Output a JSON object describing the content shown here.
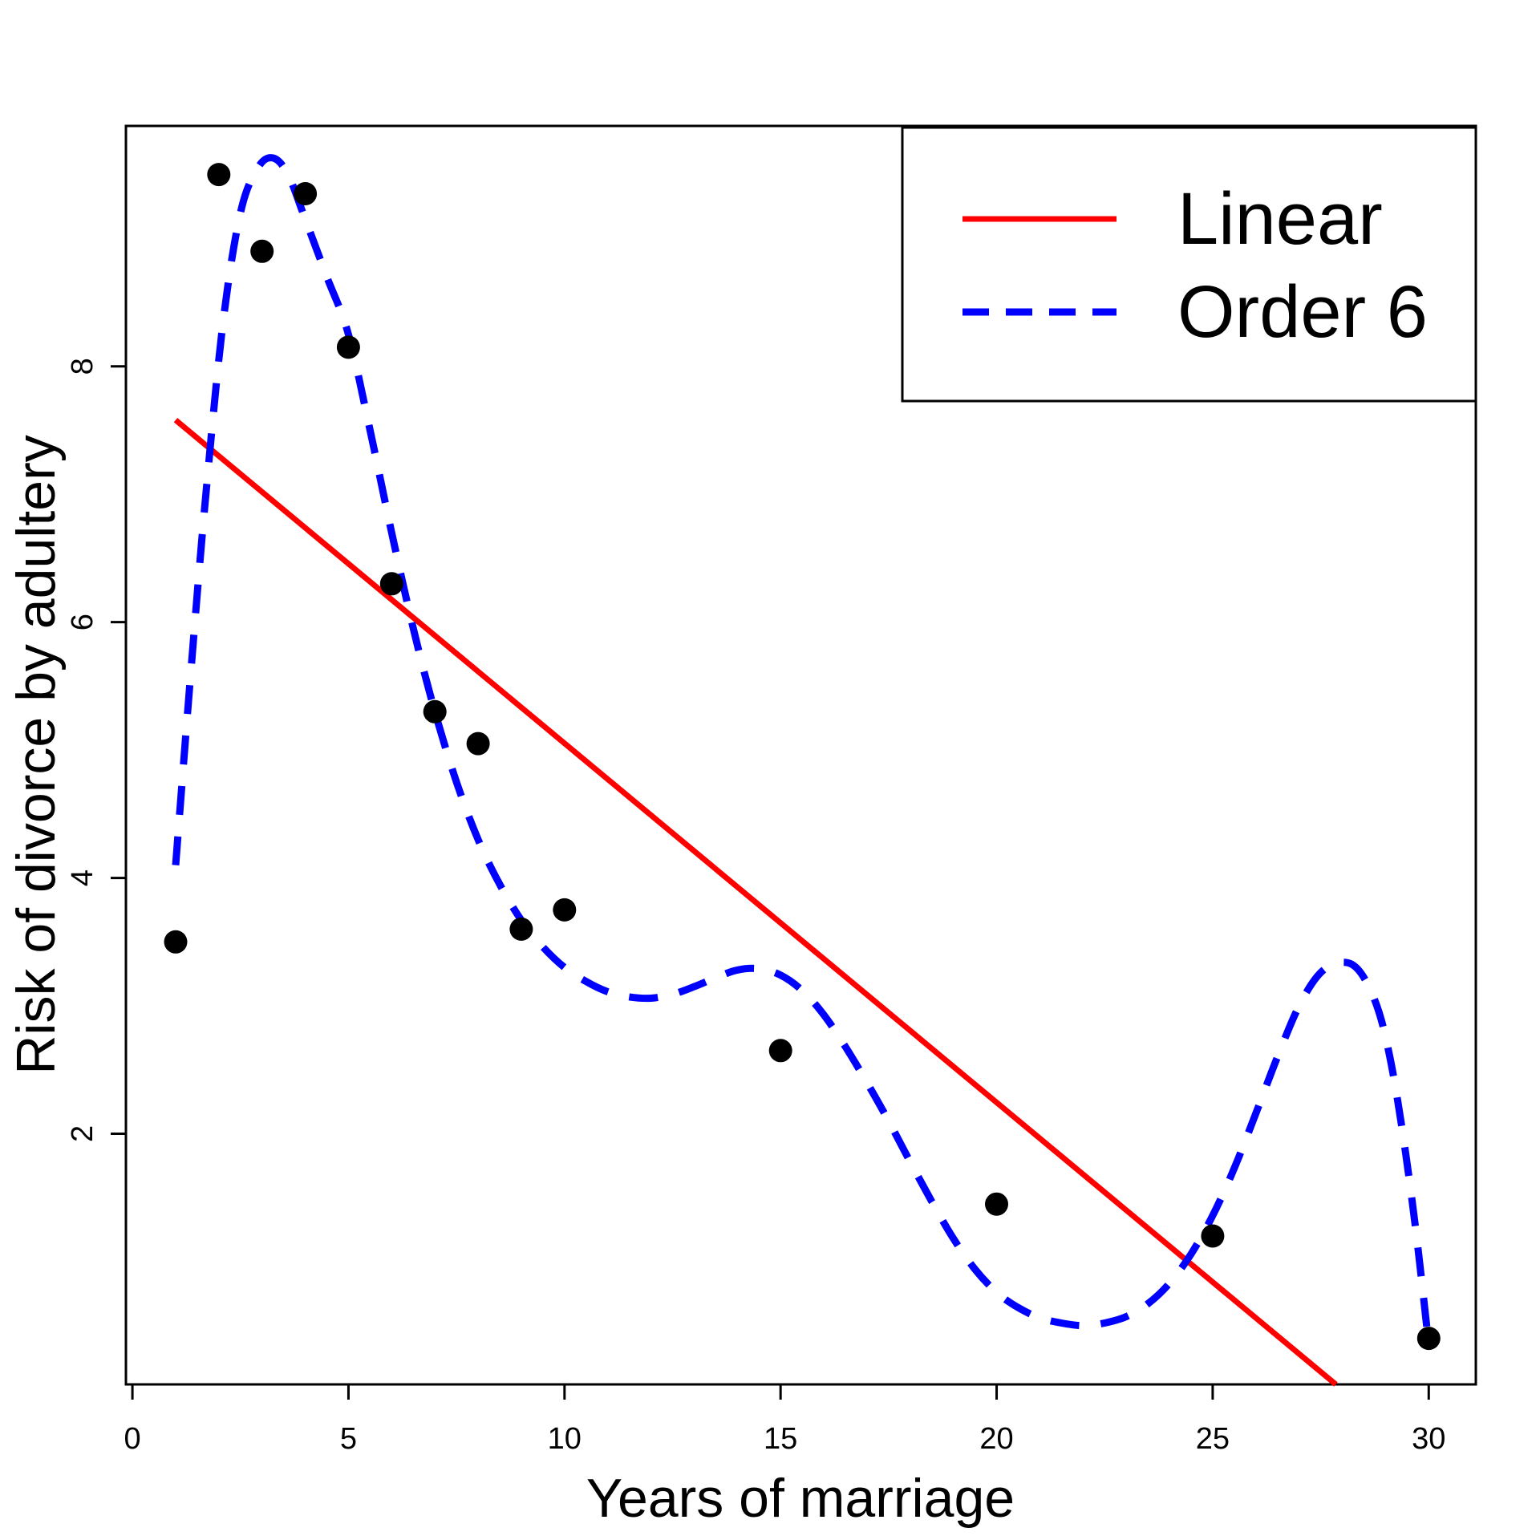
{
  "chart_data": {
    "type": "scatter",
    "title": "",
    "xlabel": "Years of marriage",
    "ylabel": "Risk of divorce by adultery",
    "xlim": [
      -0.15,
      31.09
    ],
    "ylim": [
      0.04,
      9.88
    ],
    "x_ticks": [
      0,
      5,
      10,
      15,
      20,
      25,
      30
    ],
    "y_ticks": [
      2,
      4,
      6,
      8
    ],
    "grid": false,
    "point_color": "#000000",
    "background": "#ffffff",
    "points": [
      [
        1,
        3.5
      ],
      [
        2,
        9.5
      ],
      [
        3,
        8.9
      ],
      [
        4,
        9.35
      ],
      [
        5,
        8.15
      ],
      [
        6,
        6.3
      ],
      [
        7,
        5.3
      ],
      [
        8,
        5.05
      ],
      [
        9,
        3.6
      ],
      [
        10,
        3.75
      ],
      [
        15,
        2.65
      ],
      [
        20,
        1.45
      ],
      [
        25,
        1.2
      ],
      [
        30,
        0.4
      ]
    ],
    "series": [
      {
        "name": "Linear",
        "type": "line",
        "color": "#FF0000",
        "style": "solid",
        "points": [
          [
            1,
            7.58
          ],
          [
            27.85,
            0.04
          ]
        ]
      },
      {
        "name": "Order 6",
        "type": "curve",
        "color": "#0000FF",
        "style": "dashed",
        "points": [
          [
            1,
            4.1
          ],
          [
            1.35,
            5.6
          ],
          [
            1.7,
            7.0
          ],
          [
            2.1,
            8.35
          ],
          [
            2.5,
            9.2
          ],
          [
            2.9,
            9.55
          ],
          [
            3.25,
            9.63
          ],
          [
            3.6,
            9.5
          ],
          [
            4,
            9.15
          ],
          [
            4.5,
            8.7
          ],
          [
            5,
            8.25
          ],
          [
            5.5,
            7.5
          ],
          [
            6,
            6.7
          ],
          [
            6.5,
            5.95
          ],
          [
            7,
            5.3
          ],
          [
            7.5,
            4.75
          ],
          [
            8,
            4.3
          ],
          [
            8.5,
            3.95
          ],
          [
            9,
            3.67
          ],
          [
            9.5,
            3.46
          ],
          [
            10,
            3.3
          ],
          [
            10.5,
            3.19
          ],
          [
            11,
            3.11
          ],
          [
            11.5,
            3.07
          ],
          [
            12,
            3.06
          ],
          [
            12.5,
            3.09
          ],
          [
            13,
            3.15
          ],
          [
            13.5,
            3.22
          ],
          [
            14,
            3.28
          ],
          [
            14.5,
            3.29
          ],
          [
            15,
            3.24
          ],
          [
            15.5,
            3.12
          ],
          [
            16,
            2.93
          ],
          [
            16.5,
            2.68
          ],
          [
            17,
            2.4
          ],
          [
            17.5,
            2.1
          ],
          [
            18,
            1.78
          ],
          [
            18.5,
            1.47
          ],
          [
            19,
            1.18
          ],
          [
            19.5,
            0.94
          ],
          [
            20,
            0.76
          ],
          [
            20.5,
            0.64
          ],
          [
            21,
            0.56
          ],
          [
            21.5,
            0.52
          ],
          [
            22,
            0.5
          ],
          [
            22.5,
            0.52
          ],
          [
            23,
            0.57
          ],
          [
            23.5,
            0.67
          ],
          [
            24,
            0.83
          ],
          [
            24.5,
            1.06
          ],
          [
            25,
            1.36
          ],
          [
            25.5,
            1.73
          ],
          [
            26,
            2.16
          ],
          [
            26.5,
            2.6
          ],
          [
            27,
            3.0
          ],
          [
            27.5,
            3.26
          ],
          [
            28,
            3.34
          ],
          [
            28.4,
            3.27
          ],
          [
            28.8,
            3.0
          ],
          [
            29.1,
            2.6
          ],
          [
            29.4,
            2.0
          ],
          [
            29.7,
            1.25
          ],
          [
            30,
            0.35
          ]
        ]
      }
    ],
    "legend": {
      "position": "topright",
      "labels": [
        "Linear",
        "Order 6"
      ]
    }
  }
}
